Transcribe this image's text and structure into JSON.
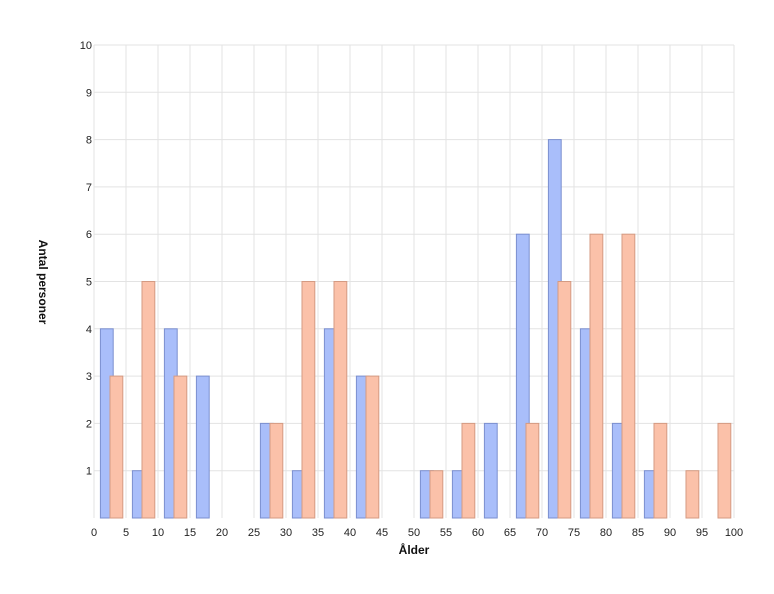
{
  "chart_data": {
    "type": "bar",
    "xlabel": "Ålder",
    "ylabel": "Antal personer",
    "xlim": [
      0,
      100
    ],
    "ylim": [
      0,
      10
    ],
    "x_ticks": [
      0,
      5,
      10,
      15,
      20,
      25,
      30,
      35,
      40,
      45,
      50,
      55,
      60,
      65,
      70,
      75,
      80,
      85,
      90,
      95,
      100
    ],
    "y_ticks": [
      1,
      2,
      3,
      4,
      5,
      6,
      7,
      8,
      9,
      10
    ],
    "grid": true,
    "legend": "none",
    "colors": {
      "blue_fill": "#a9befa",
      "blue_stroke": "#7b8fcf",
      "orange_fill": "#fbc1a9",
      "orange_stroke": "#d49a82"
    },
    "series": [
      {
        "color_key": "blue",
        "x": [
          2,
          7,
          12,
          17,
          22,
          27,
          32,
          37,
          42,
          47,
          52,
          57,
          62,
          67,
          72,
          77,
          82,
          87,
          92,
          97
        ],
        "values": [
          4,
          1,
          4,
          3,
          0,
          2,
          1,
          4,
          3,
          0,
          1,
          1,
          2,
          6,
          8,
          4,
          2,
          1,
          0,
          0
        ]
      },
      {
        "color_key": "orange",
        "x": [
          3.5,
          8.5,
          13.5,
          18.5,
          23.5,
          28.5,
          33.5,
          38.5,
          43.5,
          48.5,
          53.5,
          58.5,
          63.5,
          68.5,
          73.5,
          78.5,
          83.5,
          88.5,
          93.5,
          98.5
        ],
        "values": [
          3,
          5,
          3,
          0,
          0,
          2,
          5,
          5,
          3,
          0,
          1,
          2,
          0,
          2,
          5,
          6,
          6,
          2,
          1,
          2
        ]
      }
    ]
  }
}
